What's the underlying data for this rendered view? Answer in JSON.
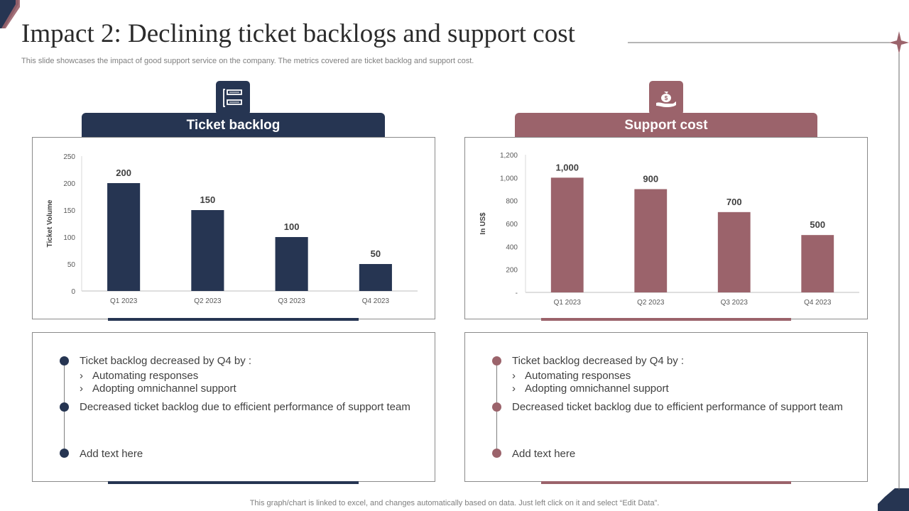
{
  "title": "Impact 2: Declining ticket backlogs and support cost",
  "subtitle": "This slide showcases the impact of good support service on the company. The metrics covered are ticket backlog and support cost.",
  "colors": {
    "navy": "#263552",
    "rose": "#9b636b"
  },
  "left": {
    "tab_label": "Ticket backlog",
    "icon": "document-list-icon",
    "bullets": [
      {
        "text": "Ticket backlog decreased by Q4 by :",
        "subs": [
          "Automating responses",
          "Adopting omnichannel support"
        ]
      },
      {
        "text": "Decreased ticket backlog due to efficient performance of support team",
        "subs": []
      },
      {
        "text": "Add text here",
        "subs": []
      }
    ]
  },
  "right": {
    "tab_label": "Support cost",
    "icon": "money-bag-hand-icon",
    "bullets": [
      {
        "text": "Ticket backlog decreased by Q4 by :",
        "subs": [
          "Automating responses",
          "Adopting omnichannel support"
        ]
      },
      {
        "text": "Decreased ticket backlog due to efficient performance of support team",
        "subs": []
      },
      {
        "text": "Add text here",
        "subs": []
      }
    ]
  },
  "chart_data": [
    {
      "type": "bar",
      "categories": [
        "Q1 2023",
        "Q2 2023",
        "Q3 2023",
        "Q4 2023"
      ],
      "values": [
        200,
        150,
        100,
        50
      ],
      "data_labels": [
        "200",
        "150",
        "100",
        "50"
      ],
      "ylabel": "Ticket Volume",
      "yticks": [
        "0",
        "50",
        "100",
        "150",
        "200",
        "250"
      ],
      "ytick_values": [
        0,
        50,
        100,
        150,
        200,
        250
      ],
      "ylim": [
        0,
        250
      ],
      "color": "#263552",
      "grid": false
    },
    {
      "type": "bar",
      "categories": [
        "Q1 2023",
        "Q2 2023",
        "Q3 2023",
        "Q4 2023"
      ],
      "values": [
        1000,
        900,
        700,
        500
      ],
      "data_labels": [
        "1,000",
        "900",
        "700",
        "500"
      ],
      "ylabel": "In US$",
      "yticks": [
        "-",
        "200",
        "400",
        "600",
        "800",
        "1,000",
        "1,200"
      ],
      "ytick_values": [
        0,
        200,
        400,
        600,
        800,
        1000,
        1200
      ],
      "ylim": [
        0,
        1200
      ],
      "color": "#9b636b",
      "grid": false
    }
  ],
  "footer": "This graph/chart is linked to excel,  and changes automatically based on data. Just left click on it and select “Edit Data”."
}
